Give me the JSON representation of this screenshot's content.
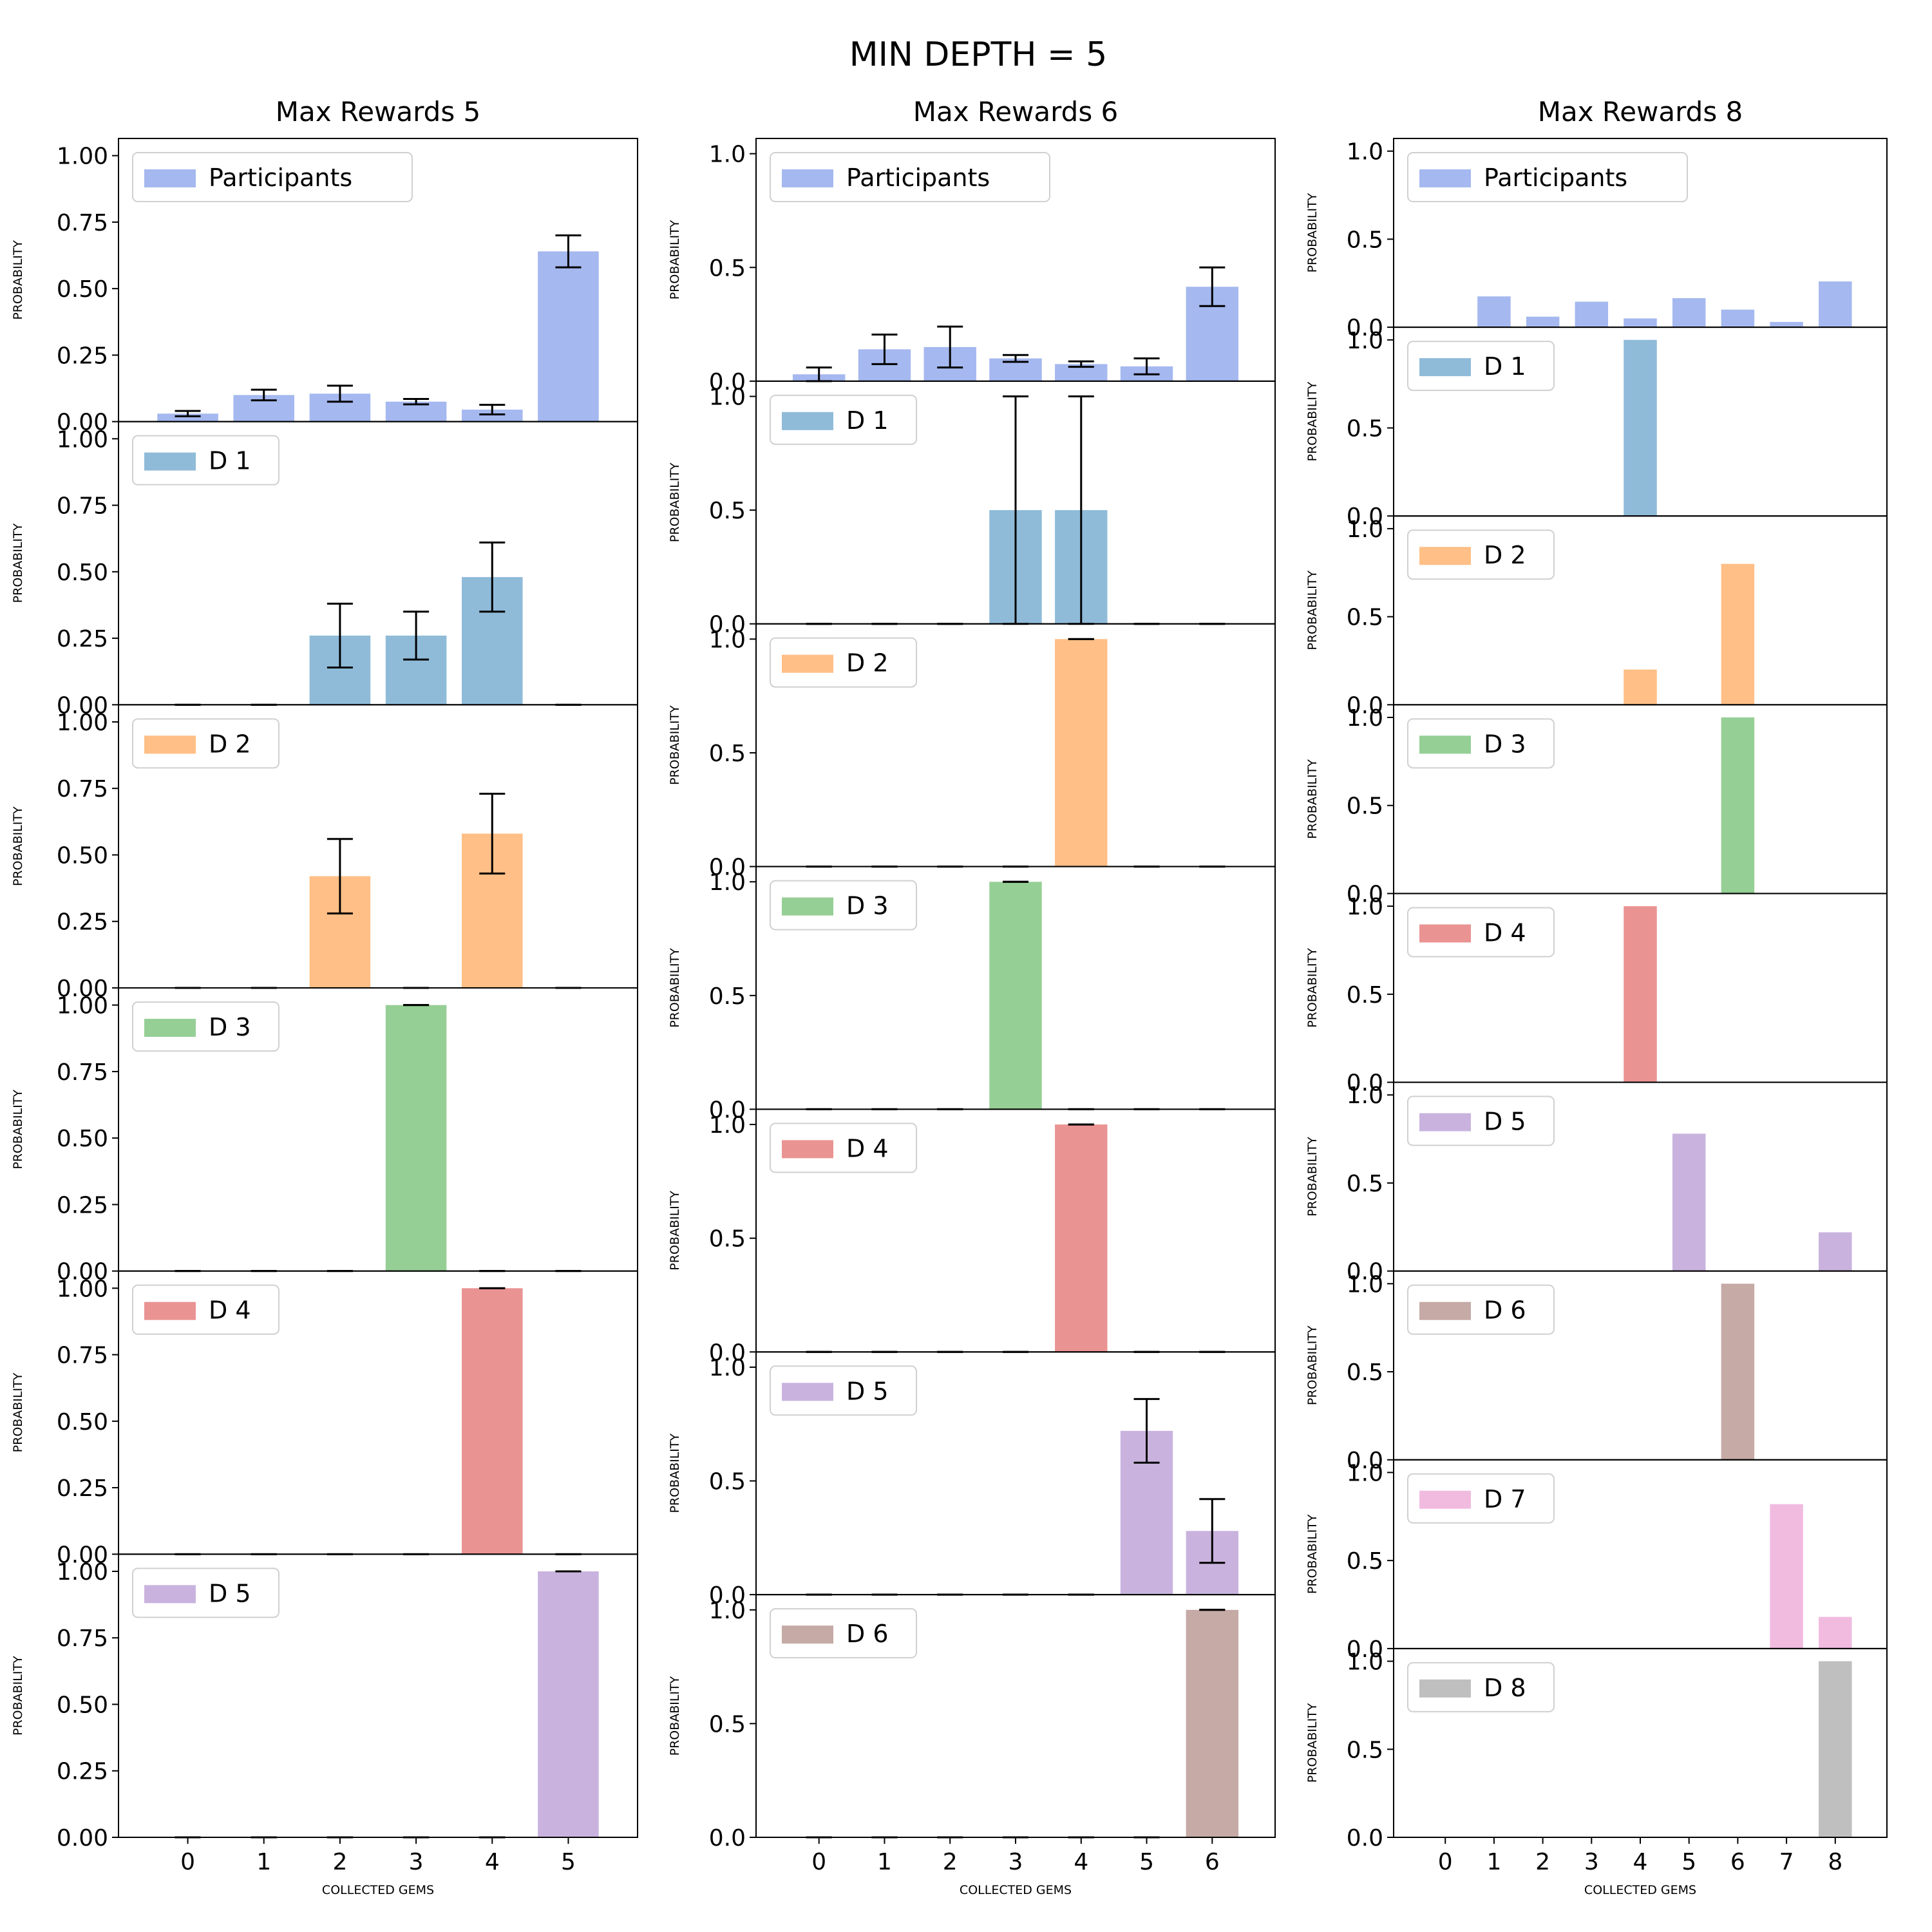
{
  "suptitle": "MIN DEPTH =  5",
  "chart_data": [
    {
      "type": "bar",
      "title": "Max Rewards 5",
      "xlabel": "COLLECTED GEMS",
      "ylabel": "PROBABILITY",
      "categories": [
        "0",
        "1",
        "2",
        "3",
        "4",
        "5"
      ],
      "yticks": [
        "0.00",
        "0.25",
        "0.50",
        "0.75",
        "1.00"
      ],
      "ylim": [
        0,
        1.05
      ],
      "panels": [
        {
          "name": "Participants",
          "color": "#4c72e0",
          "values": [
            0.03,
            0.1,
            0.105,
            0.075,
            0.045,
            0.64
          ],
          "err": [
            0.01,
            0.02,
            0.03,
            0.01,
            0.018,
            0.06
          ]
        },
        {
          "name": "D 1",
          "color": "#1f77b4",
          "values": [
            0,
            0,
            0.26,
            0.26,
            0.48,
            0
          ],
          "err": [
            0,
            0,
            0.12,
            0.09,
            0.13,
            0
          ]
        },
        {
          "name": "D 2",
          "color": "#ff7f0e",
          "values": [
            0,
            0,
            0.42,
            0,
            0.58,
            0
          ],
          "err": [
            0,
            0,
            0.14,
            0,
            0.15,
            0
          ]
        },
        {
          "name": "D 3",
          "color": "#2ca02c",
          "values": [
            0,
            0,
            0,
            1.0,
            0,
            0
          ],
          "err": [
            0,
            0,
            0,
            0,
            0,
            0
          ]
        },
        {
          "name": "D 4",
          "color": "#d62728",
          "values": [
            0,
            0,
            0,
            0,
            1.0,
            0
          ],
          "err": [
            0,
            0,
            0,
            0,
            0,
            0
          ]
        },
        {
          "name": "D 5",
          "color": "#9467bd",
          "values": [
            0,
            0,
            0,
            0,
            0,
            1.0
          ],
          "err": [
            0,
            0,
            0,
            0,
            0,
            0
          ]
        }
      ]
    },
    {
      "type": "bar",
      "title": "Max Rewards 6",
      "xlabel": "COLLECTED GEMS",
      "ylabel": "PROBABILITY",
      "categories": [
        "0",
        "1",
        "2",
        "3",
        "4",
        "5",
        "6"
      ],
      "yticks": [
        "0.0",
        "0.5",
        "1.0"
      ],
      "ylim": [
        0,
        1.05
      ],
      "panels": [
        {
          "name": "Participants",
          "color": "#4c72e0",
          "values": [
            0.03,
            0.14,
            0.15,
            0.1,
            0.075,
            0.065,
            0.415
          ],
          "err": [
            0.03,
            0.065,
            0.09,
            0.015,
            0.012,
            0.035,
            0.085
          ]
        },
        {
          "name": "D 1",
          "color": "#1f77b4",
          "values": [
            0,
            0,
            0,
            0.5,
            0.5,
            0,
            0
          ],
          "err": [
            0,
            0,
            0,
            0.5,
            0.5,
            0,
            0
          ]
        },
        {
          "name": "D 2",
          "color": "#ff7f0e",
          "values": [
            0,
            0,
            0,
            0,
            1.0,
            0,
            0
          ],
          "err": [
            0,
            0,
            0,
            0,
            0,
            0,
            0
          ]
        },
        {
          "name": "D 3",
          "color": "#2ca02c",
          "values": [
            0,
            0,
            0,
            1.0,
            0,
            0,
            0
          ],
          "err": [
            0,
            0,
            0,
            0,
            0,
            0,
            0
          ]
        },
        {
          "name": "D 4",
          "color": "#d62728",
          "values": [
            0,
            0,
            0,
            0,
            1.0,
            0,
            0
          ],
          "err": [
            0,
            0,
            0,
            0,
            0,
            0,
            0
          ]
        },
        {
          "name": "D 5",
          "color": "#9467bd",
          "values": [
            0,
            0,
            0,
            0,
            0,
            0.72,
            0.28
          ],
          "err": [
            0,
            0,
            0,
            0,
            0,
            0.14,
            0.14
          ]
        },
        {
          "name": "D 6",
          "color": "#8c564b",
          "values": [
            0,
            0,
            0,
            0,
            0,
            0,
            1.0
          ],
          "err": [
            0,
            0,
            0,
            0,
            0,
            0,
            0
          ]
        }
      ]
    },
    {
      "type": "bar",
      "title": "Max Rewards 8",
      "xlabel": "COLLECTED GEMS",
      "ylabel": "PROBABILITY",
      "categories": [
        "0",
        "1",
        "2",
        "3",
        "4",
        "5",
        "6",
        "7",
        "8"
      ],
      "yticks": [
        "0.0",
        "0.5",
        "1.0"
      ],
      "ylim": [
        0,
        1.05
      ],
      "panels": [
        {
          "name": "Participants",
          "color": "#4c72e0",
          "values": [
            0,
            0.175,
            0.06,
            0.145,
            0.05,
            0.165,
            0.1,
            0.03,
            0.26
          ]
        },
        {
          "name": "D 1",
          "color": "#1f77b4",
          "values": [
            0,
            0,
            0,
            0,
            1.0,
            0,
            0,
            0,
            0
          ]
        },
        {
          "name": "D 2",
          "color": "#ff7f0e",
          "values": [
            0,
            0,
            0,
            0,
            0.2,
            0,
            0.8,
            0,
            0
          ]
        },
        {
          "name": "D 3",
          "color": "#2ca02c",
          "values": [
            0,
            0,
            0,
            0,
            0,
            0,
            1.0,
            0,
            0
          ]
        },
        {
          "name": "D 4",
          "color": "#d62728",
          "values": [
            0,
            0,
            0,
            0,
            1.0,
            0,
            0,
            0,
            0
          ]
        },
        {
          "name": "D 5",
          "color": "#9467bd",
          "values": [
            0,
            0,
            0,
            0,
            0,
            0.78,
            0,
            0,
            0.22
          ]
        },
        {
          "name": "D 6",
          "color": "#8c564b",
          "values": [
            0,
            0,
            0,
            0,
            0,
            0,
            1.0,
            0,
            0
          ]
        },
        {
          "name": "D 7",
          "color": "#e377c2",
          "values": [
            0,
            0,
            0,
            0,
            0,
            0,
            0,
            0.82,
            0.18
          ]
        },
        {
          "name": "D 8",
          "color": "#7f7f7f",
          "values": [
            0,
            0,
            0,
            0,
            0,
            0,
            0,
            0,
            1.0
          ]
        }
      ]
    }
  ]
}
